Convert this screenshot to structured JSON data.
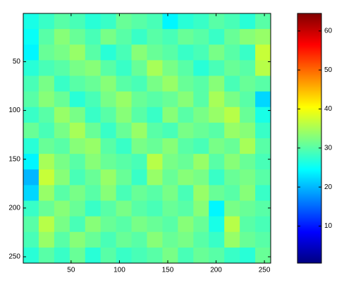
{
  "chart_data": {
    "type": "heatmap",
    "colormap": "jet",
    "x": [
      8.5,
      24.5,
      40.5,
      56.5,
      72.5,
      88.5,
      104.5,
      120.5,
      136.5,
      152.5,
      168.5,
      184.5,
      200.5,
      216.5,
      232.5,
      248.5
    ],
    "y": [
      8.5,
      24.5,
      40.5,
      56.5,
      72.5,
      88.5,
      104.5,
      120.5,
      136.5,
      152.5,
      168.5,
      184.5,
      200.5,
      216.5,
      232.5,
      248.5
    ],
    "values": [
      [
        26,
        28,
        30,
        29,
        27,
        28,
        31,
        30,
        29,
        24,
        27,
        28,
        30,
        29,
        27,
        30
      ],
      [
        25,
        30,
        33,
        31,
        29,
        32,
        30,
        28,
        30,
        29,
        31,
        30,
        28,
        31,
        33,
        34
      ],
      [
        24,
        31,
        32,
        34,
        30,
        27,
        29,
        33,
        31,
        30,
        28,
        29,
        32,
        30,
        28,
        37
      ],
      [
        27,
        29,
        30,
        32,
        33,
        30,
        28,
        31,
        35,
        32,
        30,
        27,
        29,
        31,
        30,
        36
      ],
      [
        29,
        32,
        28,
        30,
        31,
        33,
        30,
        29,
        32,
        34,
        31,
        30,
        33,
        29,
        31,
        30
      ],
      [
        30,
        33,
        31,
        27,
        29,
        32,
        34,
        31,
        30,
        31,
        33,
        30,
        35,
        32,
        30,
        22
      ],
      [
        28,
        30,
        34,
        32,
        28,
        30,
        33,
        30,
        28,
        33,
        30,
        32,
        34,
        36,
        31,
        26
      ],
      [
        31,
        29,
        32,
        35,
        31,
        28,
        31,
        34,
        30,
        29,
        32,
        31,
        30,
        34,
        33,
        28
      ],
      [
        27,
        31,
        30,
        33,
        34,
        30,
        28,
        32,
        31,
        33,
        30,
        29,
        32,
        31,
        35,
        30
      ],
      [
        24,
        35,
        32,
        30,
        33,
        31,
        30,
        29,
        36,
        32,
        31,
        34,
        30,
        33,
        31,
        29
      ],
      [
        20,
        37,
        33,
        29,
        31,
        34,
        31,
        28,
        34,
        31,
        33,
        32,
        28,
        31,
        32,
        30
      ],
      [
        22,
        34,
        30,
        32,
        30,
        33,
        29,
        31,
        30,
        32,
        29,
        34,
        31,
        30,
        33,
        28
      ],
      [
        28,
        31,
        33,
        31,
        28,
        30,
        32,
        30,
        29,
        31,
        30,
        33,
        24,
        32,
        31,
        30
      ],
      [
        30,
        36,
        32,
        29,
        33,
        31,
        30,
        32,
        31,
        30,
        33,
        31,
        26,
        36,
        30,
        29
      ],
      [
        29,
        34,
        30,
        33,
        31,
        29,
        31,
        30,
        33,
        31,
        32,
        30,
        28,
        34,
        31,
        30
      ],
      [
        27,
        30,
        28,
        31,
        27,
        30,
        28,
        29,
        30,
        32,
        29,
        31,
        30,
        28,
        27,
        31
      ]
    ],
    "xlim": [
      0.5,
      256.5
    ],
    "xticks": [
      50,
      100,
      150,
      200,
      250
    ],
    "ylim": [
      0.5,
      256.5
    ],
    "yticks": [
      50,
      100,
      150,
      200,
      250
    ],
    "y_reversed": true,
    "clim": [
      0.5,
      64.5
    ],
    "colorbar_ticks": [
      10,
      20,
      30,
      40,
      50,
      60
    ]
  }
}
